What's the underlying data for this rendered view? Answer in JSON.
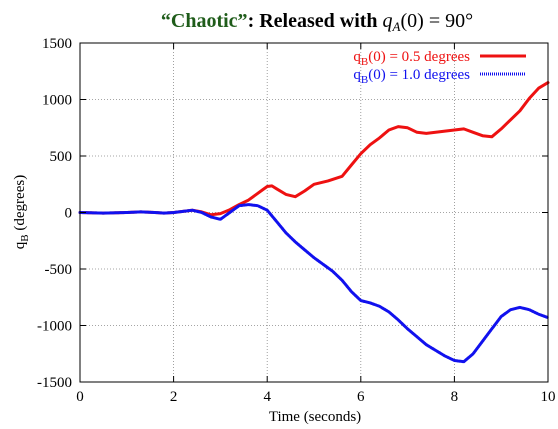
{
  "chart_data": {
    "type": "line",
    "title": {
      "quoted": "“Chaotic”",
      "text": ": Released with ",
      "math": "q",
      "math_sub": "A",
      "math_tail": "(0) = 90°",
      "quoted_color": "#1f5c1a"
    },
    "xlabel": "Time  (seconds)",
    "ylabel": {
      "base": "q",
      "sub": "B",
      "tail": "  (degrees)"
    },
    "xlim": [
      0,
      10
    ],
    "ylim": [
      -1500,
      1500
    ],
    "x_ticks": [
      0,
      2,
      4,
      6,
      8,
      10
    ],
    "y_ticks": [
      -1500,
      -1000,
      -500,
      0,
      500,
      1000,
      1500
    ],
    "grid": true,
    "legend_position": "top-right",
    "series": [
      {
        "name": {
          "base": "q",
          "sub": "B",
          "tail": "(0) = 0.5 degrees"
        },
        "color": "#ee1111",
        "style": "solid",
        "x": [
          0,
          0.5,
          1.0,
          1.3,
          1.6,
          1.8,
          2.0,
          2.2,
          2.4,
          2.6,
          2.8,
          3.0,
          3.2,
          3.4,
          3.6,
          3.8,
          3.9,
          4.0,
          4.1,
          4.2,
          4.4,
          4.6,
          4.8,
          5.0,
          5.3,
          5.6,
          5.8,
          6.0,
          6.2,
          6.4,
          6.6,
          6.8,
          7.0,
          7.2,
          7.4,
          7.6,
          7.8,
          8.0,
          8.2,
          8.4,
          8.6,
          8.8,
          9.0,
          9.2,
          9.4,
          9.6,
          9.8,
          10.0
        ],
        "y": [
          0,
          -5,
          0,
          5,
          0,
          -5,
          0,
          10,
          20,
          5,
          -20,
          -10,
          25,
          70,
          110,
          170,
          200,
          230,
          235,
          210,
          160,
          140,
          190,
          250,
          280,
          320,
          420,
          520,
          600,
          660,
          730,
          760,
          750,
          710,
          700,
          710,
          720,
          730,
          740,
          710,
          680,
          670,
          740,
          820,
          900,
          1010,
          1100,
          1150
        ]
      },
      {
        "name": {
          "base": "q",
          "sub": "B",
          "tail": "(0) = 1.0 degrees"
        },
        "color": "#1111ee",
        "style": "dotted",
        "x": [
          0,
          0.5,
          1.0,
          1.3,
          1.6,
          1.8,
          2.0,
          2.2,
          2.4,
          2.6,
          2.8,
          3.0,
          3.2,
          3.4,
          3.6,
          3.8,
          4.0,
          4.2,
          4.4,
          4.6,
          4.8,
          5.0,
          5.2,
          5.4,
          5.6,
          5.8,
          6.0,
          6.2,
          6.4,
          6.6,
          6.8,
          7.0,
          7.2,
          7.4,
          7.6,
          7.8,
          8.0,
          8.2,
          8.4,
          8.6,
          8.8,
          9.0,
          9.2,
          9.4,
          9.6,
          9.8,
          10.0
        ],
        "y": [
          0,
          -5,
          0,
          5,
          0,
          -5,
          0,
          10,
          20,
          0,
          -40,
          -60,
          0,
          60,
          70,
          60,
          20,
          -80,
          -180,
          -260,
          -330,
          -400,
          -460,
          -520,
          -600,
          -700,
          -780,
          -800,
          -830,
          -880,
          -950,
          -1030,
          -1100,
          -1170,
          -1220,
          -1270,
          -1310,
          -1320,
          -1250,
          -1140,
          -1030,
          -920,
          -860,
          -840,
          -860,
          -900,
          -930
        ]
      }
    ]
  }
}
